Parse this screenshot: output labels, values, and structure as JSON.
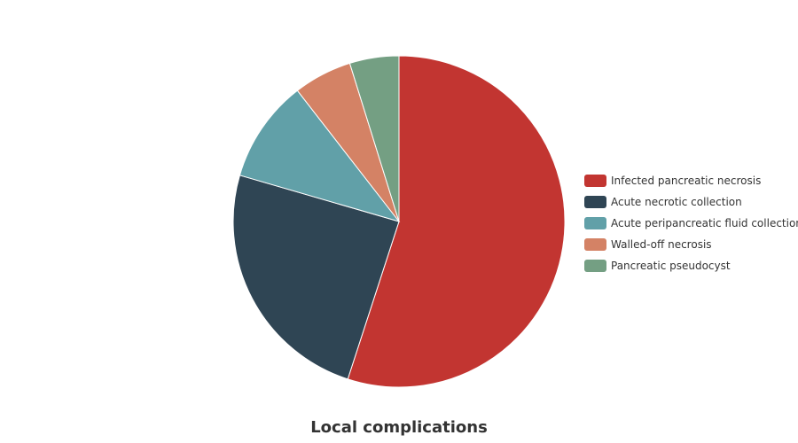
{
  "chart_data": {
    "type": "pie",
    "title": "Local complications",
    "legend_position": "right",
    "slices": [
      {
        "label": "Infected pancreatic necrosis",
        "value": 55.0,
        "color": "#c23531"
      },
      {
        "label": "Acute necrotic collection",
        "value": 24.5,
        "color": "#2f4554"
      },
      {
        "label": "Acute peripancreatic fluid collection",
        "value": 10.0,
        "color": "#61a0a8"
      },
      {
        "label": "Walled-off necrosis",
        "value": 5.7,
        "color": "#d48265"
      },
      {
        "label": "Pancreatic pseudocyst",
        "value": 4.8,
        "color": "#749f83"
      }
    ]
  }
}
